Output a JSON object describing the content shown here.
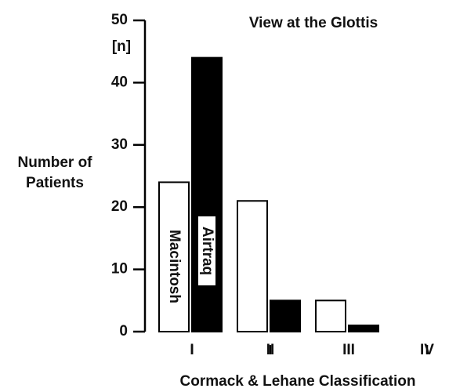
{
  "chart_data": {
    "type": "bar",
    "title": "View at the Glottis",
    "ylabel": [
      "Number of",
      "Patients"
    ],
    "yunit": "[n]",
    "xlabel": "Cormack & Lehane Classification",
    "categories": [
      "I",
      "II",
      "III",
      "IV"
    ],
    "series": [
      {
        "name": "Macintosh",
        "color": "#ffffff",
        "values": [
          24,
          21,
          5,
          0
        ]
      },
      {
        "name": "Airtraq",
        "color": "#000000",
        "values": [
          44,
          5,
          1,
          0
        ]
      }
    ],
    "ylim": [
      0,
      50
    ],
    "yticks": [
      0,
      10,
      20,
      30,
      40,
      50
    ]
  }
}
